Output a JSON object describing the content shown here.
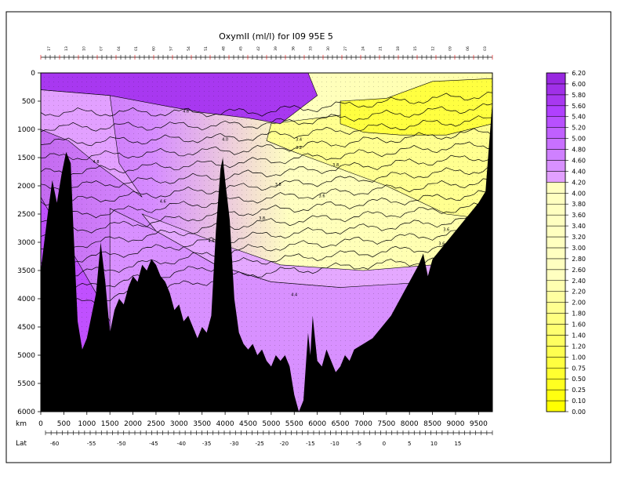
{
  "chart_data": {
    "type": "heatmap",
    "title": "OxymII (ml/l) for I09 95E 5",
    "xlabel": "km",
    "ylabel": "",
    "lat_label": "Lat",
    "xlim": [
      0,
      9800
    ],
    "ylim": [
      0,
      6000
    ],
    "x_ticks": [
      0,
      500,
      1000,
      1500,
      2000,
      2500,
      3000,
      3500,
      4000,
      4500,
      5000,
      5500,
      6000,
      6500,
      7000,
      7500,
      8000,
      8500,
      9000,
      9500
    ],
    "y_ticks": [
      0,
      500,
      1000,
      1500,
      2000,
      2500,
      3000,
      3500,
      4000,
      4500,
      5000,
      5500,
      6000
    ],
    "lat_ticks": [
      {
        "km": 300,
        "label": "-60"
      },
      {
        "km": 1100,
        "label": "-55"
      },
      {
        "km": 1750,
        "label": "-50"
      },
      {
        "km": 2450,
        "label": "-45"
      },
      {
        "km": 3050,
        "label": "-40"
      },
      {
        "km": 3600,
        "label": "-35"
      },
      {
        "km": 4200,
        "label": "-30"
      },
      {
        "km": 4750,
        "label": "-25"
      },
      {
        "km": 5280,
        "label": "-20"
      },
      {
        "km": 5850,
        "label": "-15"
      },
      {
        "km": 6380,
        "label": "-10"
      },
      {
        "km": 6900,
        "label": "-5"
      },
      {
        "km": 7450,
        "label": "0"
      },
      {
        "km": 8000,
        "label": "5"
      },
      {
        "km": 8530,
        "label": "10"
      },
      {
        "km": 9050,
        "label": "15"
      }
    ],
    "stations": [
      "17",
      "13",
      "10",
      "07",
      "04",
      "01",
      "60",
      "57",
      "54",
      "51",
      "48",
      "45",
      "42",
      "39",
      "36",
      "33",
      "30",
      "27",
      "24",
      "21",
      "18",
      "15",
      "12",
      "09",
      "06",
      "03"
    ],
    "colorbar": {
      "levels": [
        "0.00",
        "0.10",
        "0.25",
        "0.50",
        "0.75",
        "1.00",
        "1.20",
        "1.40",
        "1.60",
        "1.80",
        "2.00",
        "2.20",
        "2.40",
        "2.60",
        "2.80",
        "3.00",
        "3.20",
        "3.40",
        "3.60",
        "3.80",
        "4.00",
        "4.20",
        "4.40",
        "4.60",
        "4.80",
        "5.00",
        "5.20",
        "5.40",
        "5.60",
        "5.80",
        "6.00",
        "6.20"
      ],
      "colors": [
        "#ffff00",
        "#ffff10",
        "#ffff20",
        "#ffff30",
        "#ffff40",
        "#ffff50",
        "#ffff60",
        "#ffff70",
        "#ffff80",
        "#ffff90",
        "#ffffa0",
        "#ffffb0",
        "#ffffc0",
        "#ffffc0",
        "#ffffc0",
        "#ffffc0",
        "#ffffc0",
        "#ffffc0",
        "#ffffc0",
        "#ffffc0",
        "#ffffc0",
        "#e2a0ff",
        "#d890ff",
        "#cf80ff",
        "#c870ff",
        "#c060ff",
        "#b850ff",
        "#b040ff",
        "#a838f0",
        "#a030e8",
        "#9828e0"
      ]
    },
    "contour_labels": [
      {
        "x": 1200,
        "y": 1600,
        "label": "4.8"
      },
      {
        "x": 2650,
        "y": 2300,
        "label": "4.6"
      },
      {
        "x": 3700,
        "y": 3000,
        "label": "4.6"
      },
      {
        "x": 5500,
        "y": 3950,
        "label": "4.4"
      },
      {
        "x": 4000,
        "y": 1200,
        "label": "4.0"
      },
      {
        "x": 5150,
        "y": 2000,
        "label": "3.8"
      },
      {
        "x": 6400,
        "y": 1650,
        "label": "3.8"
      },
      {
        "x": 6100,
        "y": 2200,
        "label": "3.6"
      },
      {
        "x": 5600,
        "y": 1200,
        "label": "3.4"
      },
      {
        "x": 5600,
        "y": 1350,
        "label": "3.2"
      },
      {
        "x": 4800,
        "y": 2600,
        "label": "3.8"
      },
      {
        "x": 8800,
        "y": 2800,
        "label": "3.6"
      },
      {
        "x": 8700,
        "y": 3050,
        "label": "3.6"
      },
      {
        "x": 3150,
        "y": 700,
        "label": "4.6"
      }
    ]
  }
}
